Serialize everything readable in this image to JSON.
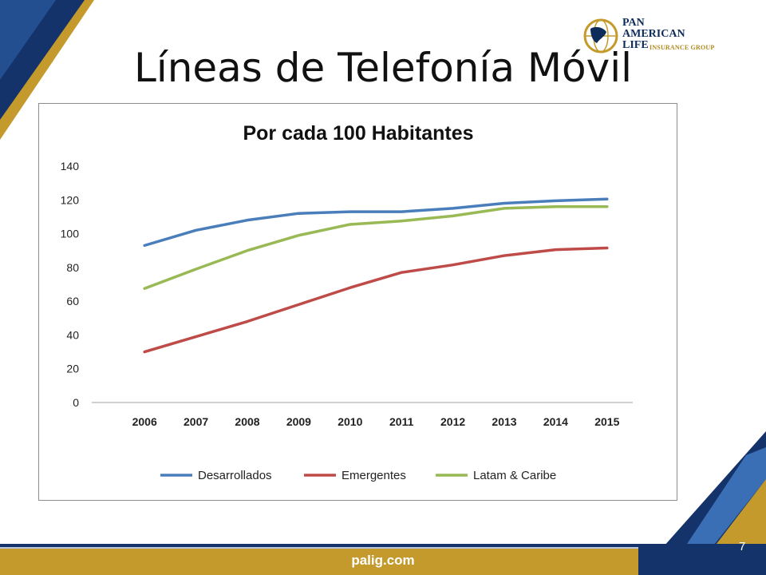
{
  "slide": {
    "title": "Líneas de Telefonía Móvil",
    "footer_url": "palig.com",
    "page_number": "7"
  },
  "logo": {
    "line1": "PAN",
    "line2": "AMERICAN",
    "line3": "LIFE",
    "line4": "INSURANCE GROUP",
    "icon": "globe-icon"
  },
  "colors": {
    "navy": "#14336b",
    "gold": "#c39a2b",
    "desarrollados": "#4a7ebb",
    "emergentes": "#be4b48",
    "latam": "#98b954"
  },
  "chart_data": {
    "type": "line",
    "title": "Por cada 100 Habitantes",
    "xlabel": "",
    "ylabel": "",
    "categories": [
      "2006",
      "2007",
      "2008",
      "2009",
      "2010",
      "2011",
      "2012",
      "2013",
      "2014",
      "2015"
    ],
    "ylim": [
      0,
      140
    ],
    "yticks": [
      "0",
      "20",
      "40",
      "60",
      "80",
      "100",
      "120",
      "140"
    ],
    "grid": false,
    "legend_position": "bottom",
    "series": [
      {
        "name": "Desarrollados",
        "color": "#4a7ebb",
        "values": [
          93,
          102,
          108,
          112,
          113,
          113,
          115,
          118,
          119.5,
          120.5
        ]
      },
      {
        "name": "Emergentes",
        "color": "#be4b48",
        "values": [
          30,
          39,
          48,
          58,
          68,
          77,
          81.5,
          87,
          90.5,
          91.5
        ]
      },
      {
        "name": "Latam & Caribe",
        "color": "#98b954",
        "values": [
          67.5,
          79,
          90,
          99,
          105.5,
          107.5,
          110.5,
          115,
          116,
          116
        ]
      }
    ]
  }
}
